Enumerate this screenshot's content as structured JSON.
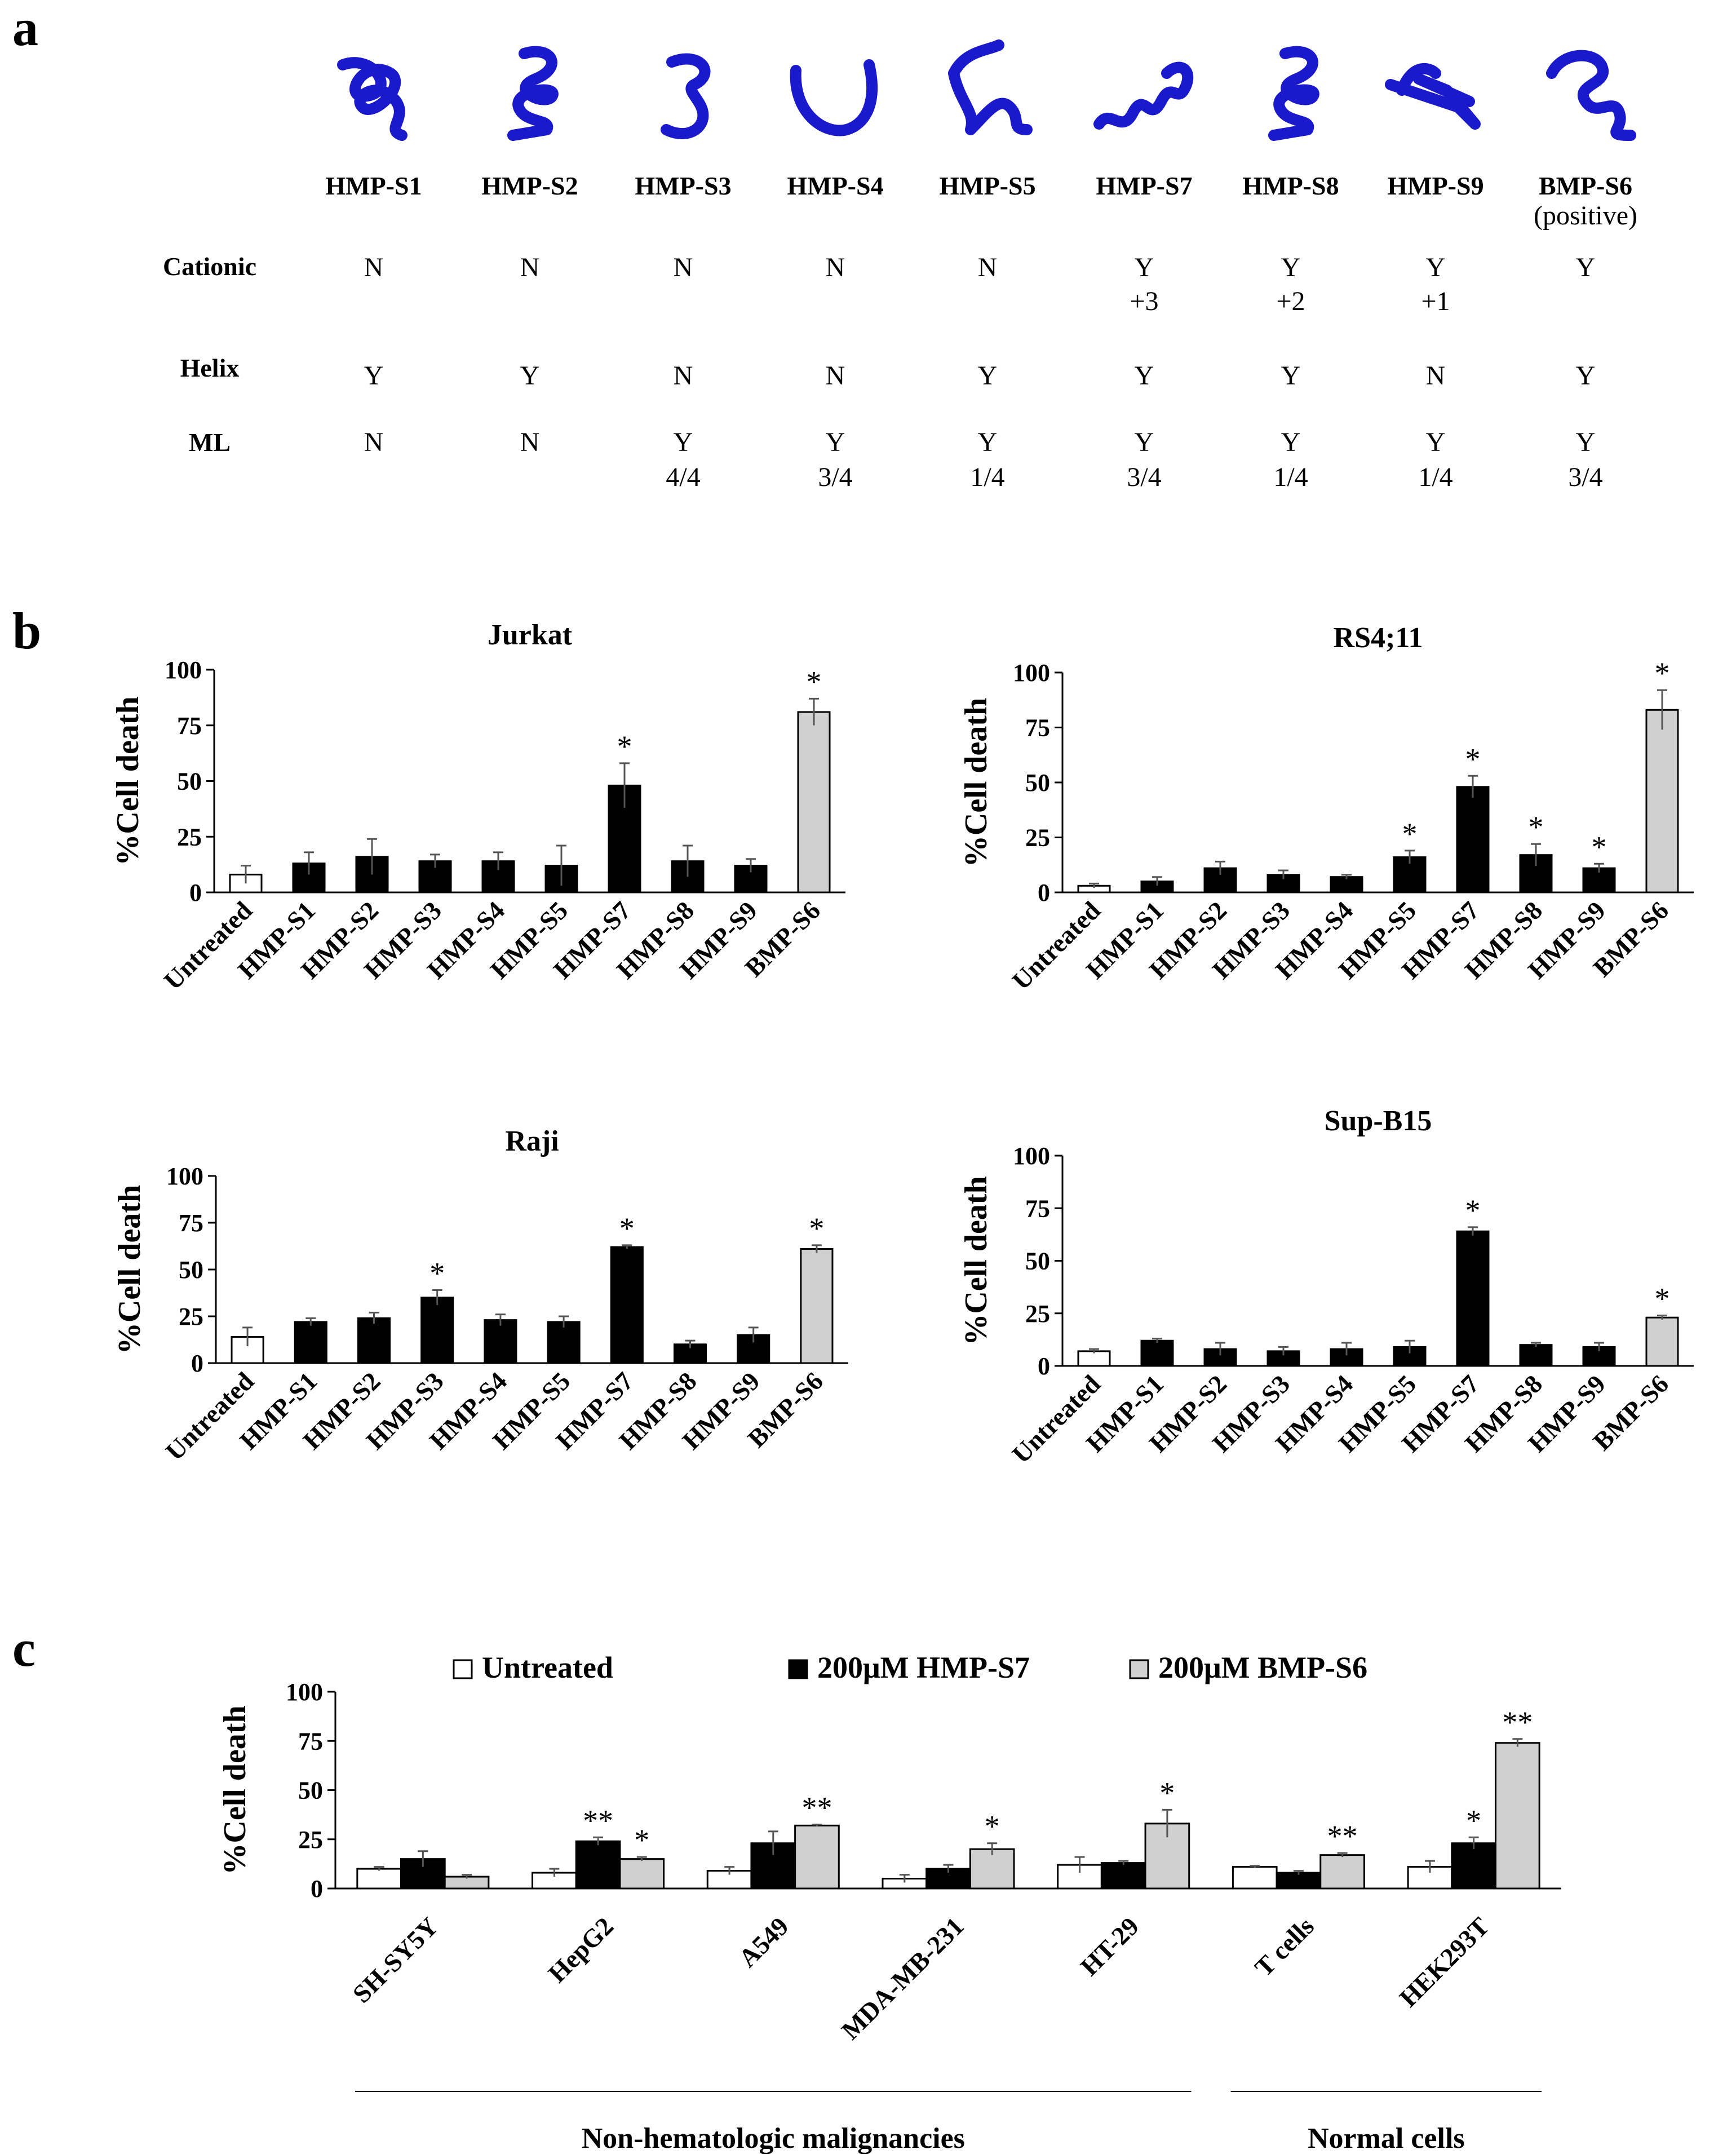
{
  "panel_labels": {
    "a": "a",
    "b": "b",
    "c": "c"
  },
  "colors": {
    "protein": "#1a1acc",
    "untreated": "#ffffff",
    "hmp": "#000000",
    "bmp": "#d0d0d0",
    "error": "#555555"
  },
  "table": {
    "columns": [
      {
        "name": "HMP-S1",
        "sub": "",
        "cationic": [
          "N"
        ],
        "helix": "Y",
        "ml": [
          "N"
        ]
      },
      {
        "name": "HMP-S2",
        "sub": "",
        "cationic": [
          "N"
        ],
        "helix": "Y",
        "ml": [
          "N"
        ]
      },
      {
        "name": "HMP-S3",
        "sub": "",
        "cationic": [
          "N"
        ],
        "helix": "N",
        "ml": [
          "Y",
          "4/4"
        ]
      },
      {
        "name": "HMP-S4",
        "sub": "",
        "cationic": [
          "N"
        ],
        "helix": "N",
        "ml": [
          "Y",
          "3/4"
        ]
      },
      {
        "name": "HMP-S5",
        "sub": "",
        "cationic": [
          "N"
        ],
        "helix": "Y",
        "ml": [
          "Y",
          "1/4"
        ]
      },
      {
        "name": "HMP-S7",
        "sub": "",
        "cationic": [
          "Y",
          "+3"
        ],
        "helix": "Y",
        "ml": [
          "Y",
          "3/4"
        ]
      },
      {
        "name": "HMP-S8",
        "sub": "",
        "cationic": [
          "Y",
          "+2"
        ],
        "helix": "Y",
        "ml": [
          "Y",
          "1/4"
        ]
      },
      {
        "name": "HMP-S9",
        "sub": "",
        "cationic": [
          "Y",
          "+1"
        ],
        "helix": "N",
        "ml": [
          "Y",
          "1/4"
        ]
      },
      {
        "name": "BMP-S6",
        "sub": "(positive)",
        "cationic": [
          "Y"
        ],
        "helix": "Y",
        "ml": [
          "Y",
          "3/4"
        ]
      }
    ],
    "row_labels": {
      "cationic": "Cationic",
      "helix": "Helix",
      "ml": "ML"
    },
    "structure_icons": [
      "short-helix",
      "helix-loop",
      "open-loop",
      "u-loop",
      "helix-tail",
      "long-helix",
      "helix-loop",
      "beta-hairpin",
      "helix-coil"
    ]
  },
  "chart_data": [
    {
      "type": "bar",
      "title": "Jurkat",
      "ylabel": "%Cell death",
      "ylim": [
        0,
        100
      ],
      "yticks": [
        0,
        25,
        50,
        75,
        100
      ],
      "categories": [
        "Untreated",
        "HMP-S1",
        "HMP-S2",
        "HMP-S3",
        "HMP-S4",
        "HMP-S5",
        "HMP-S7",
        "HMP-S8",
        "HMP-S9",
        "BMP-S6"
      ],
      "values": [
        8,
        13,
        16,
        14,
        14,
        12,
        48,
        14,
        12,
        81
      ],
      "errors": [
        4,
        5,
        8,
        3,
        4,
        9,
        10,
        7,
        3,
        6
      ],
      "fill": [
        "untreated",
        "hmp",
        "hmp",
        "hmp",
        "hmp",
        "hmp",
        "hmp",
        "hmp",
        "hmp",
        "bmp"
      ],
      "sig": [
        "",
        "",
        "",
        "",
        "",
        "",
        "*",
        "",
        "",
        "*"
      ]
    },
    {
      "type": "bar",
      "title": "RS4;11",
      "ylabel": "%Cell death",
      "ylim": [
        0,
        100
      ],
      "yticks": [
        0,
        25,
        50,
        75,
        100
      ],
      "categories": [
        "Untreated",
        "HMP-S1",
        "HMP-S2",
        "HMP-S3",
        "HMP-S4",
        "HMP-S5",
        "HMP-S7",
        "HMP-S8",
        "HMP-S9",
        "BMP-S6"
      ],
      "values": [
        3,
        5,
        11,
        8,
        7,
        16,
        48,
        17,
        11,
        83
      ],
      "errors": [
        1,
        2,
        3,
        2,
        1,
        3,
        5,
        5,
        2,
        9
      ],
      "fill": [
        "untreated",
        "hmp",
        "hmp",
        "hmp",
        "hmp",
        "hmp",
        "hmp",
        "hmp",
        "hmp",
        "bmp"
      ],
      "sig": [
        "",
        "",
        "",
        "",
        "",
        "*",
        "*",
        "*",
        "*",
        "*"
      ]
    },
    {
      "type": "bar",
      "title": "Raji",
      "ylabel": "%Cell death",
      "ylim": [
        0,
        100
      ],
      "yticks": [
        0,
        25,
        50,
        75,
        100
      ],
      "categories": [
        "Untreated",
        "HMP-S1",
        "HMP-S2",
        "HMP-S3",
        "HMP-S4",
        "HMP-S5",
        "HMP-S7",
        "HMP-S8",
        "HMP-S9",
        "BMP-S6"
      ],
      "values": [
        14,
        22,
        24,
        35,
        23,
        22,
        62,
        10,
        15,
        61
      ],
      "errors": [
        5,
        2,
        3,
        4,
        3,
        3,
        1,
        2,
        4,
        2
      ],
      "fill": [
        "untreated",
        "hmp",
        "hmp",
        "hmp",
        "hmp",
        "hmp",
        "hmp",
        "hmp",
        "hmp",
        "bmp"
      ],
      "sig": [
        "",
        "",
        "",
        "*",
        "",
        "",
        "*",
        "",
        "",
        "*"
      ]
    },
    {
      "type": "bar",
      "title": "Sup-B15",
      "ylabel": "%Cell death",
      "ylim": [
        0,
        100
      ],
      "yticks": [
        0,
        25,
        50,
        75,
        100
      ],
      "categories": [
        "Untreated",
        "HMP-S1",
        "HMP-S2",
        "HMP-S3",
        "HMP-S4",
        "HMP-S5",
        "HMP-S7",
        "HMP-S8",
        "HMP-S9",
        "BMP-S6"
      ],
      "values": [
        7,
        12,
        8,
        7,
        8,
        9,
        64,
        10,
        9,
        23
      ],
      "errors": [
        1,
        1,
        3,
        2,
        3,
        3,
        2,
        1,
        2,
        1
      ],
      "fill": [
        "untreated",
        "hmp",
        "hmp",
        "hmp",
        "hmp",
        "hmp",
        "hmp",
        "hmp",
        "hmp",
        "bmp"
      ],
      "sig": [
        "",
        "",
        "",
        "",
        "",
        "",
        "*",
        "",
        "",
        "*"
      ]
    },
    {
      "type": "bar",
      "title": "",
      "ylabel": "%Cell death",
      "ylim": [
        0,
        100
      ],
      "yticks": [
        0,
        25,
        50,
        75,
        100
      ],
      "legend": [
        "Untreated",
        "200μM HMP-S7",
        "200μM BMP-S6"
      ],
      "categories": [
        "SH-SY5Y",
        "HepG2",
        "A549",
        "MDA-MB-231",
        "HT-29",
        "T cells",
        "HEK293T"
      ],
      "series": [
        {
          "name": "Untreated",
          "values": [
            10,
            8,
            9,
            5,
            12,
            11,
            11
          ],
          "errors": [
            1,
            2,
            2,
            2,
            4,
            0.5,
            3
          ],
          "sig": [
            "",
            "",
            "",
            "",
            "",
            "",
            ""
          ]
        },
        {
          "name": "200μM HMP-S7",
          "values": [
            15,
            24,
            23,
            10,
            13,
            8,
            23
          ],
          "errors": [
            4,
            2,
            6,
            2,
            1,
            1,
            3
          ],
          "sig": [
            "",
            "**",
            "",
            "",
            "",
            "",
            "*"
          ]
        },
        {
          "name": "200μM BMP-S6",
          "values": [
            6,
            15,
            32,
            20,
            33,
            17,
            74
          ],
          "errors": [
            1,
            1,
            0.5,
            3,
            7,
            1,
            2
          ],
          "sig": [
            "",
            "*",
            "**",
            "*",
            "*",
            "**",
            "**"
          ]
        }
      ],
      "groups": [
        {
          "label": "Non-hematologic malignancies",
          "from": 0,
          "to": 4
        },
        {
          "label": "Normal cells",
          "from": 5,
          "to": 6
        }
      ]
    }
  ]
}
